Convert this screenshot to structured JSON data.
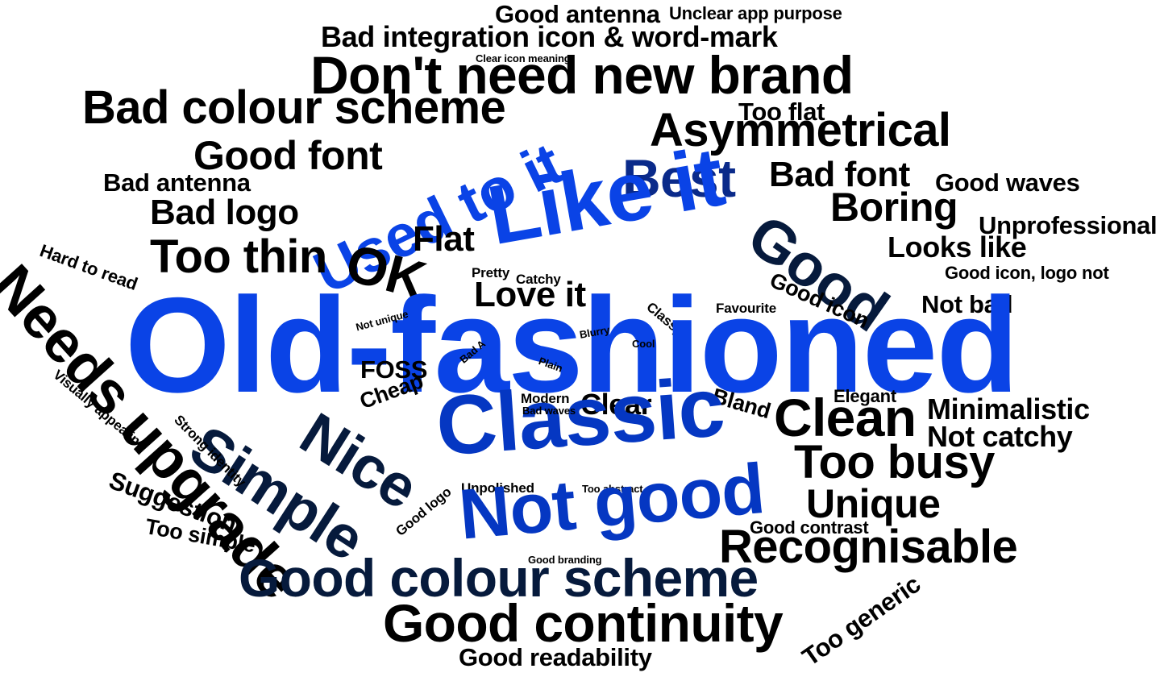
{
  "words": [
    {
      "text": "Good antenna",
      "cls": "c-black s28"
    },
    {
      "text": "Unclear app purpose",
      "cls": "c-black s20"
    },
    {
      "text": "Bad integration icon & word-mark",
      "cls": "c-black s34"
    },
    {
      "text": "Clear icon meaning",
      "cls": "c-black s10"
    },
    {
      "text": "Don't need new brand",
      "cls": "c-black s64"
    },
    {
      "text": "Bad colour scheme",
      "cls": "c-black s56"
    },
    {
      "text": "Too flat",
      "cls": "c-black s28"
    },
    {
      "text": "Asymmetrical",
      "cls": "c-black s56"
    },
    {
      "text": "Good font",
      "cls": "c-black s48"
    },
    {
      "text": "Used to it",
      "cls": "c-blue s72"
    },
    {
      "text": "Best",
      "cls": "c-dark s64"
    },
    {
      "text": "Bad font",
      "cls": "c-black s40"
    },
    {
      "text": "Good waves",
      "cls": "c-black s28"
    },
    {
      "text": "Bad antenna",
      "cls": "c-black s28"
    },
    {
      "text": "Like it",
      "cls": "c-blue s104"
    },
    {
      "text": "Good",
      "cls": "c-navy s72"
    },
    {
      "text": "Bad logo",
      "cls": "c-black s40"
    },
    {
      "text": "Boring",
      "cls": "c-black s48"
    },
    {
      "text": "Unprofessional",
      "cls": "c-black s28"
    },
    {
      "text": "Flat",
      "cls": "c-black s40"
    },
    {
      "text": "Looks like",
      "cls": "c-black s34"
    },
    {
      "text": "Too thin",
      "cls": "c-black s56"
    },
    {
      "text": "OK",
      "cls": "c-black s64"
    },
    {
      "text": "Hard to read",
      "cls": "c-black s20"
    },
    {
      "text": "Pretty",
      "cls": "c-black s14"
    },
    {
      "text": "Catchy",
      "cls": "c-black s14"
    },
    {
      "text": "Good icon",
      "cls": "c-black s24"
    },
    {
      "text": "Good icon, logo not",
      "cls": "c-black s20"
    },
    {
      "text": "Love it",
      "cls": "c-black s40"
    },
    {
      "text": "Classy",
      "cls": "c-black s14"
    },
    {
      "text": "Not bad",
      "cls": "c-black s28"
    },
    {
      "text": "Favourite",
      "cls": "c-black s14"
    },
    {
      "text": "Needs upgrade",
      "cls": "c-black s72"
    },
    {
      "text": "Old-fashioned",
      "cls": "c-blue s150"
    },
    {
      "text": "Not unique",
      "cls": "c-black s10"
    },
    {
      "text": "Blurry",
      "cls": "c-black s10"
    },
    {
      "text": "Cool",
      "cls": "c-black s10"
    },
    {
      "text": "Bad A",
      "cls": "c-black s10"
    },
    {
      "text": "Plain",
      "cls": "c-black s10"
    },
    {
      "text": "FOSS",
      "cls": "c-black s28"
    },
    {
      "text": "Visually appealing",
      "cls": "c-black s14"
    },
    {
      "text": "Cheap",
      "cls": "c-black s24"
    },
    {
      "text": "Bland",
      "cls": "c-black s24"
    },
    {
      "text": "Elegant",
      "cls": "c-black s20"
    },
    {
      "text": "Simple",
      "cls": "c-navy s72"
    },
    {
      "text": "Nice",
      "cls": "c-navy s72"
    },
    {
      "text": "Modern",
      "cls": "c-black s14"
    },
    {
      "text": "Clear",
      "cls": "c-black s34"
    },
    {
      "text": "Classic",
      "cls": "c-mid s104"
    },
    {
      "text": "Clean",
      "cls": "c-black s64"
    },
    {
      "text": "Minimalistic",
      "cls": "c-black s34"
    },
    {
      "text": "Strong identity",
      "cls": "c-black s14"
    },
    {
      "text": "Bad waves",
      "cls": "c-black s10"
    },
    {
      "text": "Not catchy",
      "cls": "c-black s34"
    },
    {
      "text": "Too busy",
      "cls": "c-black s56"
    },
    {
      "text": "Suggestion",
      "cls": "c-black s28"
    },
    {
      "text": "Unpolished",
      "cls": "c-black s14"
    },
    {
      "text": "Too abstract",
      "cls": "c-black s10"
    },
    {
      "text": "Unique",
      "cls": "c-black s48"
    },
    {
      "text": "Good logo",
      "cls": "c-black s14"
    },
    {
      "text": "Not good",
      "cls": "c-mid s88"
    },
    {
      "text": "Too simple",
      "cls": "c-black s24"
    },
    {
      "text": "Good contrast",
      "cls": "c-black s20"
    },
    {
      "text": "Recognisable",
      "cls": "c-black s56"
    },
    {
      "text": "Good branding",
      "cls": "c-black s10"
    },
    {
      "text": "Good colour scheme",
      "cls": "c-navy s64"
    },
    {
      "text": "Too generic",
      "cls": "c-black s28"
    },
    {
      "text": "Good continuity",
      "cls": "c-black s64"
    },
    {
      "text": "Good readability",
      "cls": "c-black s28"
    }
  ]
}
